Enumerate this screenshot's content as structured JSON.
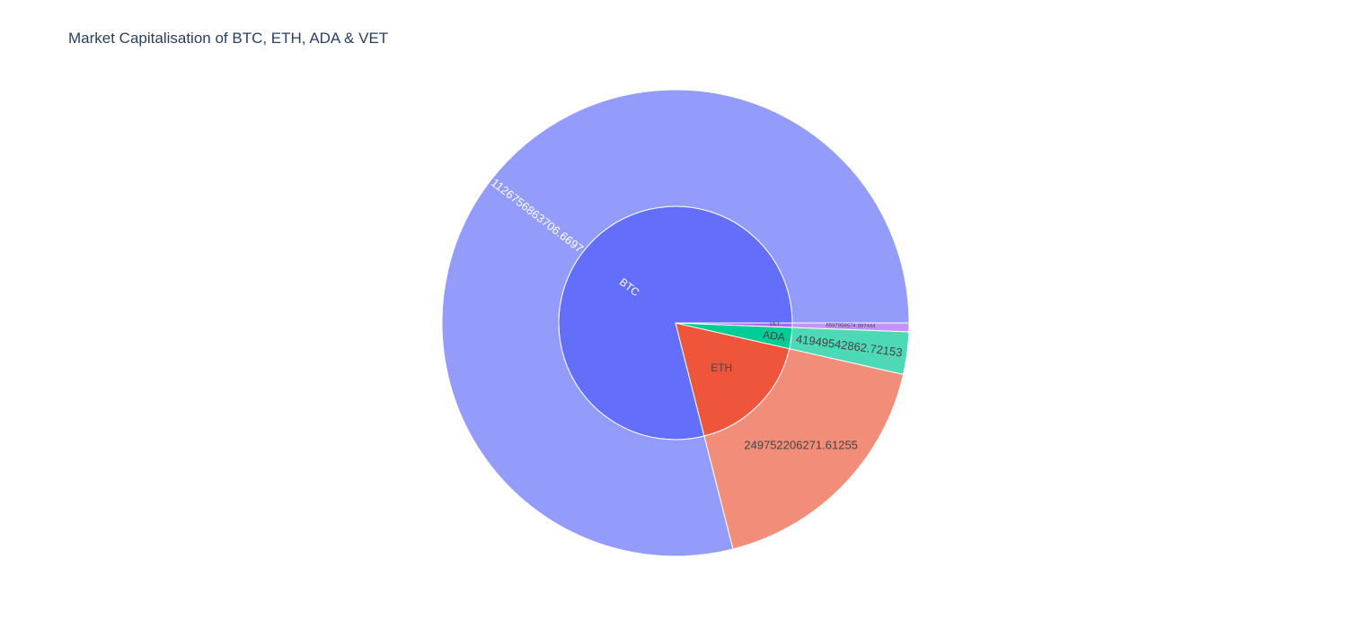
{
  "chart_data": {
    "type": "sunburst",
    "title": "Market Capitalisation of BTC, ETH, ADA & VET",
    "nodes": [
      {
        "name": "BTC",
        "value": 1126756863706.6697,
        "color": "#636efa",
        "outer_color": "#939bfb",
        "children": [
          {
            "label": "1126756863706.6697",
            "value": 1126756863706.6697
          }
        ]
      },
      {
        "name": "ETH",
        "value": 249752206271.61255,
        "color": "#ef553b",
        "outer_color": "#f28d7a",
        "children": [
          {
            "label": "249752206271.61255",
            "value": 249752206271.61255
          }
        ]
      },
      {
        "name": "ADA",
        "value": 41949542862.72153,
        "color": "#00cc96",
        "outer_color": "#4dd9b6",
        "children": [
          {
            "label": "41949542862.72153",
            "value": 41949542862.72153
          }
        ]
      },
      {
        "name": "VET",
        "value": 8597959574.997444,
        "color": "#ab63fa",
        "outer_color": "#c494fb",
        "children": [
          {
            "label": "8597959574.997444",
            "value": 8597959574.997444
          }
        ]
      }
    ]
  }
}
